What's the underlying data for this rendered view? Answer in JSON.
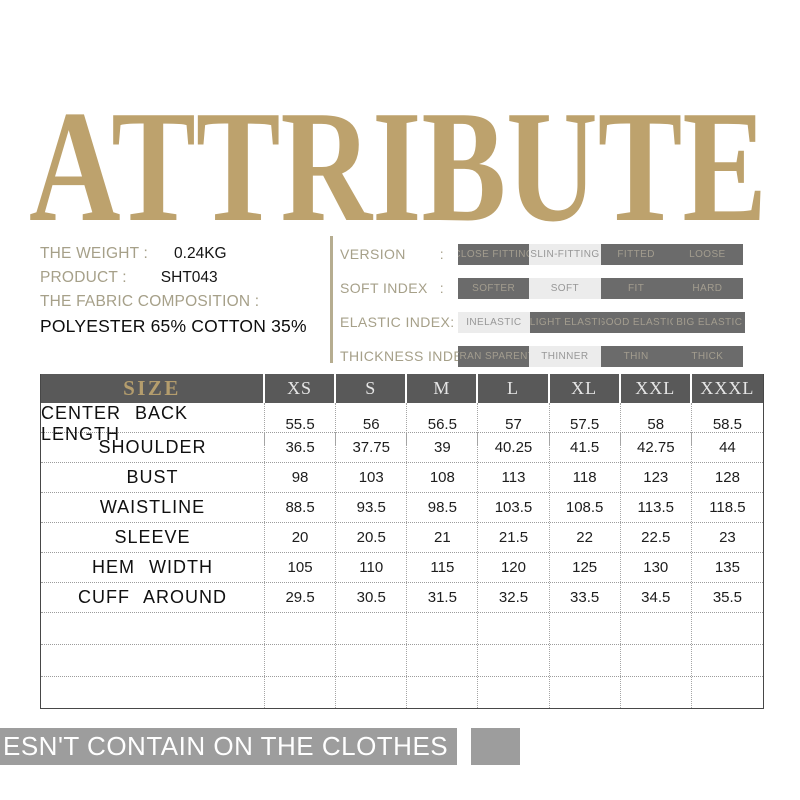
{
  "title": "ATTRIBUTE",
  "product_info": {
    "weight_label": "THE WEIGHT :",
    "weight_value": "0.24KG",
    "product_label": "PRODUCT :",
    "product_value": "SHT043",
    "fabric_label": "THE FABRIC COMPOSITION :",
    "fabric_value": "POLYESTER 65% COTTON 35%"
  },
  "indices": [
    {
      "label": "VERSION",
      "separator": ":",
      "options": [
        "CLOSE FITTING",
        "SLIN-FITTING",
        "FITTED",
        "LOOSE"
      ],
      "selected_index": 1
    },
    {
      "label": "SOFT INDEX",
      "separator": ":",
      "options": [
        "SOFTER",
        "SOFT",
        "FIT",
        "HARD"
      ],
      "selected_index": 1
    },
    {
      "label": "ELASTIC INDEX",
      "separator": ":",
      "options": [
        "INELASTIC",
        "SLIGHT ELASTIC",
        "GOOD ELASTIC",
        "BIG ELASTIC"
      ],
      "selected_index": 0
    },
    {
      "label": "THICKNESS INDEX:",
      "separator": "",
      "options": [
        "TRAN SPARENT",
        "THINNER",
        "THIN",
        "THICK"
      ],
      "selected_index": 1
    }
  ],
  "size_table": {
    "header": [
      "SIZE",
      "XS",
      "S",
      "M",
      "L",
      "XL",
      "XXL",
      "XXXL"
    ],
    "rows": [
      {
        "label": "CENTER BACK LENGTH",
        "values": [
          "55.5",
          "56",
          "56.5",
          "57",
          "57.5",
          "58",
          "58.5"
        ]
      },
      {
        "label": "SHOULDER",
        "values": [
          "36.5",
          "37.75",
          "39",
          "40.25",
          "41.5",
          "42.75",
          "44"
        ]
      },
      {
        "label": "BUST",
        "values": [
          "98",
          "103",
          "108",
          "113",
          "118",
          "123",
          "128"
        ]
      },
      {
        "label": "WAISTLINE",
        "values": [
          "88.5",
          "93.5",
          "98.5",
          "103.5",
          "108.5",
          "113.5",
          "118.5"
        ]
      },
      {
        "label": "SLEEVE",
        "values": [
          "20",
          "20.5",
          "21",
          "21.5",
          "22",
          "22.5",
          "23"
        ]
      },
      {
        "label": "HEM WIDTH",
        "values": [
          "105",
          "110",
          "115",
          "120",
          "125",
          "130",
          "135"
        ]
      },
      {
        "label": "CUFF AROUND",
        "values": [
          "29.5",
          "30.5",
          "31.5",
          "32.5",
          "33.5",
          "34.5",
          "35.5"
        ]
      }
    ],
    "empty_row_count": 3
  },
  "footer_banner": {
    "text": "ESN'T CONTAIN ON THE CLOTHES"
  },
  "colors": {
    "title_gold": "#bda26d",
    "label_olive": "#a6a089",
    "divider_tan": "#b6ad90",
    "table_header_gray": "#595959",
    "size_header_gold": "#b49d6d",
    "segment_dark": "#6b6b6b",
    "segment_light": "#ececec",
    "segment_text_on_dark": "#a39d8f",
    "segment_text_on_light": "#979797",
    "banner_gray": "#9d9d9d",
    "banner_text": "#ffffff"
  }
}
